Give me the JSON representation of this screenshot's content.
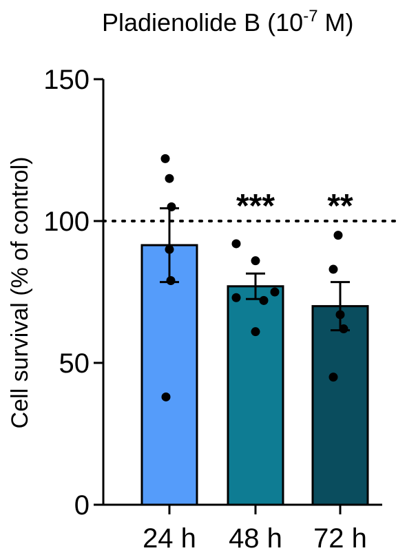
{
  "chart_data": {
    "type": "bar",
    "title_main": "Pladienolide B (10",
    "title_sup": "-7",
    "title_end": " M)",
    "ylabel": "Cell survival (% of control)",
    "xlabel": "",
    "ylim": [
      0,
      150
    ],
    "yticks": [
      0,
      50,
      100,
      150
    ],
    "reference_line": 100,
    "categories": [
      "24 h",
      "48 h",
      "72 h"
    ],
    "values": [
      91.5,
      77,
      70
    ],
    "sem": [
      13,
      4.5,
      8.5
    ],
    "points": [
      [
        122,
        115,
        105,
        90,
        79,
        38
      ],
      [
        92,
        86,
        75,
        73,
        72,
        61
      ],
      [
        95,
        83,
        67,
        62,
        45
      ]
    ],
    "significance": [
      "",
      "***",
      "**"
    ],
    "colors": [
      "#559cfa",
      "#0e7c93",
      "#0a4d5e"
    ],
    "grid": false
  }
}
